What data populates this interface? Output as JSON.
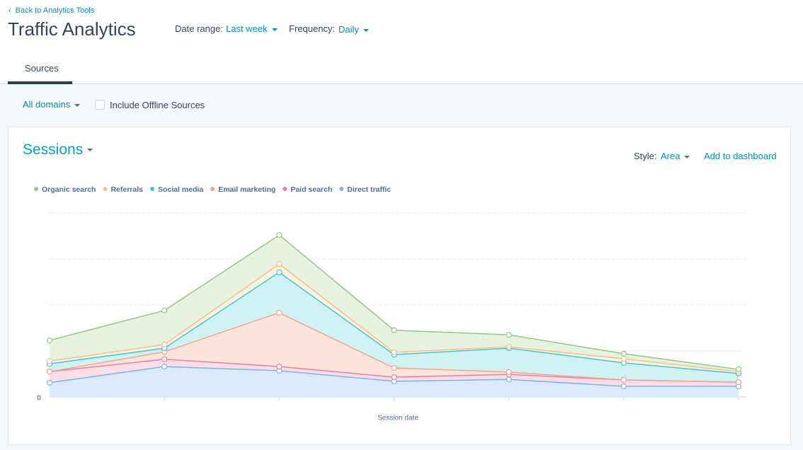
{
  "header": {
    "back_link": "Back to Analytics Tools",
    "title": "Traffic Analytics",
    "date_range_label": "Date range:",
    "date_range_value": "Last week",
    "frequency_label": "Frequency:",
    "frequency_value": "Daily"
  },
  "tabs": [
    "Sources"
  ],
  "filters": {
    "domain": "All domains",
    "offline_checkbox": "Include Offline Sources"
  },
  "card": {
    "metric": "Sessions",
    "style_label": "Style:",
    "style_value": "Area",
    "add_link": "Add to dashboard"
  },
  "chart_data": {
    "type": "stacked_area",
    "x_label": "Session date",
    "categories": [
      null,
      null,
      null,
      null,
      null,
      null,
      null
    ],
    "ylim": [
      0,
      400
    ],
    "yticks": [
      0
    ],
    "gridlines": [
      100,
      200,
      300,
      400
    ],
    "grid": true,
    "series": [
      {
        "name": "Organic search",
        "color": "#8fcb7e",
        "fill": "#e3f1da",
        "values": [
          45,
          74,
          63,
          48,
          26,
          11,
          5
        ]
      },
      {
        "name": "Referrals",
        "color": "#f5c186",
        "fill": "#fdf0de",
        "values": [
          6,
          8,
          18,
          5,
          3,
          9,
          4
        ]
      },
      {
        "name": "Social media",
        "color": "#45c4d0",
        "fill": "#c9f0f1",
        "values": [
          17,
          8,
          88,
          29,
          52,
          37,
          19
        ]
      },
      {
        "name": "Email marketing",
        "color": "#f2a58e",
        "fill": "#fde0d6",
        "values": [
          0,
          16,
          117,
          20,
          5,
          0,
          0
        ]
      },
      {
        "name": "Paid search",
        "color": "#ea7ea0",
        "fill": "#fbd8e4",
        "values": [
          24,
          16,
          9,
          9,
          11,
          14,
          9
        ]
      },
      {
        "name": "Direct traffic",
        "color": "#7fb2e6",
        "fill": "#d6e8fa",
        "values": [
          31,
          66,
          57,
          34,
          38,
          23,
          23
        ]
      }
    ]
  }
}
